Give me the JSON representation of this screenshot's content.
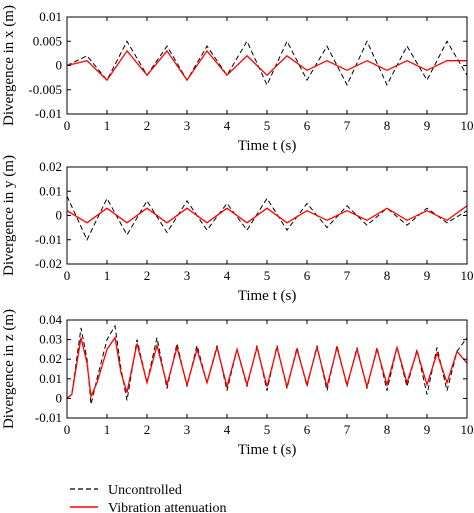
{
  "chart_data": [
    {
      "type": "line",
      "xlabel": "Time t (s)",
      "ylabel": "Divergence in x (m)",
      "xlim": [
        0,
        10
      ],
      "ylim": [
        -0.01,
        0.01
      ],
      "xticks": [
        "0",
        "1",
        "2",
        "3",
        "4",
        "5",
        "6",
        "7",
        "8",
        "9",
        "10"
      ],
      "yticks": [
        "0.01",
        "0.005",
        "0",
        "-0.005",
        "-0.01"
      ],
      "ytick_values": [
        0.01,
        0.005,
        0,
        -0.005,
        -0.01
      ],
      "series": [
        {
          "name": "Uncontrolled",
          "style": "dashed",
          "color": "#000000",
          "x": [
            0,
            0.5,
            1,
            1.5,
            2,
            2.5,
            3,
            3.5,
            4,
            4.5,
            5,
            5.5,
            6,
            6.5,
            7,
            7.5,
            8,
            8.5,
            9,
            9.5,
            10
          ],
          "y": [
            0,
            0.002,
            -0.003,
            0.005,
            -0.002,
            0.004,
            -0.003,
            0.004,
            -0.002,
            0.005,
            -0.004,
            0.005,
            -0.003,
            0.004,
            -0.004,
            0.005,
            -0.004,
            0.004,
            -0.003,
            0.005,
            -0.002
          ]
        },
        {
          "name": "Vibration attenuation",
          "style": "solid",
          "color": "#ff0000",
          "x": [
            0,
            0.5,
            1,
            1.5,
            2,
            2.5,
            3,
            3.5,
            4,
            4.5,
            5,
            5.5,
            6,
            6.5,
            7,
            7.5,
            8,
            8.5,
            9,
            9.5,
            10
          ],
          "y": [
            0,
            0.001,
            -0.003,
            0.003,
            -0.002,
            0.003,
            -0.003,
            0.003,
            -0.002,
            0.002,
            -0.002,
            0.002,
            -0.001,
            0.001,
            -0.001,
            0.001,
            -0.001,
            0.001,
            -0.001,
            0.001,
            0.001
          ]
        }
      ]
    },
    {
      "type": "line",
      "xlabel": "Time t (s)",
      "ylabel": "Divergence in y (m)",
      "xlim": [
        0,
        10
      ],
      "ylim": [
        -0.02,
        0.02
      ],
      "xticks": [
        "0",
        "1",
        "2",
        "3",
        "4",
        "5",
        "6",
        "7",
        "8",
        "9",
        "10"
      ],
      "yticks": [
        "0.02",
        "0.01",
        "0",
        "-0.01",
        "-0.02"
      ],
      "ytick_values": [
        0.02,
        0.01,
        0,
        -0.01,
        -0.02
      ],
      "series": [
        {
          "name": "Uncontrolled",
          "style": "dashed",
          "color": "#000000",
          "x": [
            0,
            0.5,
            1,
            1.5,
            2,
            2.5,
            3,
            3.5,
            4,
            4.5,
            5,
            5.5,
            6,
            6.5,
            7,
            7.5,
            8,
            8.5,
            9,
            9.5,
            10
          ],
          "y": [
            0.008,
            -0.01,
            0.007,
            -0.008,
            0.006,
            -0.007,
            0.006,
            -0.006,
            0.005,
            -0.006,
            0.007,
            -0.006,
            0.005,
            -0.005,
            0.004,
            -0.004,
            0.003,
            -0.004,
            0.003,
            -0.003,
            0.002
          ]
        },
        {
          "name": "Vibration attenuation",
          "style": "solid",
          "color": "#ff0000",
          "x": [
            0,
            0.5,
            1,
            1.5,
            2,
            2.5,
            3,
            3.5,
            4,
            4.5,
            5,
            5.5,
            6,
            6.5,
            7,
            7.5,
            8,
            8.5,
            9,
            9.5,
            10
          ],
          "y": [
            0.002,
            -0.003,
            0.003,
            -0.003,
            0.003,
            -0.003,
            0.003,
            -0.003,
            0.003,
            -0.003,
            0.003,
            -0.003,
            0.002,
            -0.002,
            0.002,
            -0.002,
            0.003,
            -0.002,
            0.002,
            -0.002,
            0.004
          ]
        }
      ]
    },
    {
      "type": "line",
      "xlabel": "Time t (s)",
      "ylabel": "Divergence in z (m)",
      "xlim": [
        0,
        10
      ],
      "ylim": [
        -0.01,
        0.04
      ],
      "xticks": [
        "0",
        "1",
        "2",
        "3",
        "4",
        "5",
        "6",
        "7",
        "8",
        "9",
        "10"
      ],
      "yticks": [
        "0.04",
        "0.03",
        "0.02",
        "0.01",
        "0",
        "-0.01"
      ],
      "ytick_values": [
        0.04,
        0.03,
        0.02,
        0.01,
        0,
        -0.01
      ],
      "series": [
        {
          "name": "Uncontrolled",
          "style": "dashed",
          "color": "#000000",
          "x": [
            0,
            0.12,
            0.35,
            0.5,
            0.6,
            0.75,
            1.0,
            1.2,
            1.35,
            1.5,
            1.75,
            2.0,
            2.25,
            2.5,
            2.75,
            3.0,
            3.25,
            3.5,
            3.75,
            4.0,
            4.25,
            4.5,
            4.75,
            5.0,
            5.25,
            5.5,
            5.75,
            6.0,
            6.25,
            6.5,
            6.75,
            7.0,
            7.25,
            7.5,
            7.75,
            8.0,
            8.25,
            8.5,
            8.75,
            9.0,
            9.25,
            9.5,
            9.75,
            10.0
          ],
          "y": [
            0,
            0.002,
            0.036,
            0.02,
            -0.003,
            0.01,
            0.03,
            0.037,
            0.015,
            -0.001,
            0.03,
            0.008,
            0.031,
            0.005,
            0.028,
            0.006,
            0.027,
            0.008,
            0.027,
            0.004,
            0.025,
            0.006,
            0.027,
            0.004,
            0.027,
            0.005,
            0.026,
            0.006,
            0.027,
            0.004,
            0.027,
            0.006,
            0.026,
            0.005,
            0.026,
            0.004,
            0.026,
            0.006,
            0.025,
            0.002,
            0.026,
            0.004,
            0.024,
            0.031
          ]
        },
        {
          "name": "Vibration attenuation",
          "style": "solid",
          "color": "#ff0000",
          "x": [
            0,
            0.12,
            0.35,
            0.5,
            0.6,
            0.75,
            1.0,
            1.2,
            1.35,
            1.5,
            1.75,
            2.0,
            2.25,
            2.5,
            2.75,
            3.0,
            3.25,
            3.5,
            3.75,
            4.0,
            4.25,
            4.5,
            4.75,
            5.0,
            5.25,
            5.5,
            5.75,
            6.0,
            6.25,
            6.5,
            6.75,
            7.0,
            7.25,
            7.5,
            7.75,
            8.0,
            8.25,
            8.5,
            8.75,
            9.0,
            9.25,
            9.5,
            9.75,
            10.0
          ],
          "y": [
            0,
            0.002,
            0.031,
            0.018,
            0.001,
            0.008,
            0.025,
            0.031,
            0.013,
            0.003,
            0.028,
            0.008,
            0.027,
            0.007,
            0.026,
            0.007,
            0.025,
            0.008,
            0.026,
            0.006,
            0.025,
            0.007,
            0.026,
            0.006,
            0.026,
            0.006,
            0.025,
            0.007,
            0.026,
            0.006,
            0.026,
            0.007,
            0.025,
            0.006,
            0.025,
            0.007,
            0.026,
            0.008,
            0.024,
            0.007,
            0.023,
            0.008,
            0.024,
            0.018
          ]
        }
      ]
    }
  ],
  "legend": {
    "items": [
      {
        "label": "Uncontrolled",
        "style": "dashed",
        "color": "#000000"
      },
      {
        "label": "Vibration attenuation",
        "style": "solid",
        "color": "#ff0000"
      }
    ]
  }
}
